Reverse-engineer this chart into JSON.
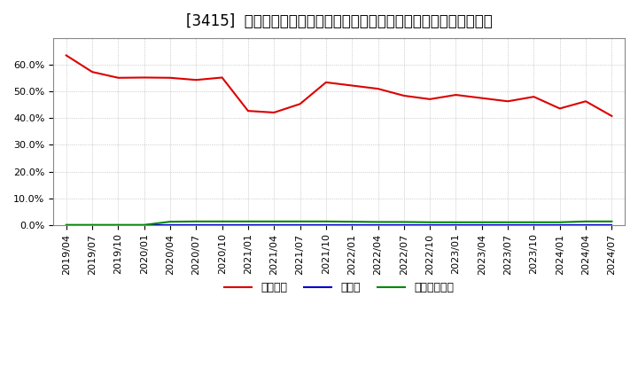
{
  "title": "[3415]  自己資本、のれん、繰延税金資産の総資産に対する比率の推移",
  "x_labels": [
    "2019/04",
    "2019/07",
    "2019/10",
    "2020/01",
    "2020/04",
    "2020/07",
    "2020/10",
    "2021/01",
    "2021/04",
    "2021/07",
    "2021/10",
    "2022/01",
    "2022/04",
    "2022/07",
    "2022/10",
    "2023/01",
    "2023/04",
    "2023/07",
    "2023/10",
    "2024/01",
    "2024/04",
    "2024/07"
  ],
  "equity_ratio": [
    0.635,
    0.573,
    0.551,
    0.552,
    0.551,
    0.543,
    0.552,
    0.427,
    0.421,
    0.453,
    0.534,
    0.522,
    0.51,
    0.484,
    0.471,
    0.487,
    0.475,
    0.463,
    0.48,
    0.436,
    0.463,
    0.408
  ],
  "goodwill_ratio": [
    0.0,
    0.0,
    0.0,
    0.0,
    0.0,
    0.0,
    0.0,
    0.0,
    0.0,
    0.0,
    0.0,
    0.0,
    0.0,
    0.0,
    0.0,
    0.0,
    0.0,
    0.0,
    0.0,
    0.0,
    0.0,
    0.0
  ],
  "deferred_tax_ratio": [
    0.0,
    0.0,
    0.0,
    0.0,
    0.012,
    0.013,
    0.013,
    0.013,
    0.013,
    0.013,
    0.013,
    0.012,
    0.011,
    0.011,
    0.01,
    0.01,
    0.01,
    0.01,
    0.01,
    0.01,
    0.013,
    0.013
  ],
  "equity_color": "#dd0000",
  "goodwill_color": "#0000cc",
  "deferred_tax_color": "#008800",
  "bg_color": "#ffffff",
  "plot_bg_color": "#ffffff",
  "grid_color": "#aaaaaa",
  "legend_labels": [
    "自己資本",
    "のれん",
    "繰延税金資産"
  ],
  "ylim": [
    0.0,
    0.7
  ],
  "yticks": [
    0.0,
    0.1,
    0.2,
    0.3,
    0.4,
    0.5,
    0.6
  ],
  "title_fontsize": 12,
  "tick_fontsize": 8,
  "legend_fontsize": 9
}
